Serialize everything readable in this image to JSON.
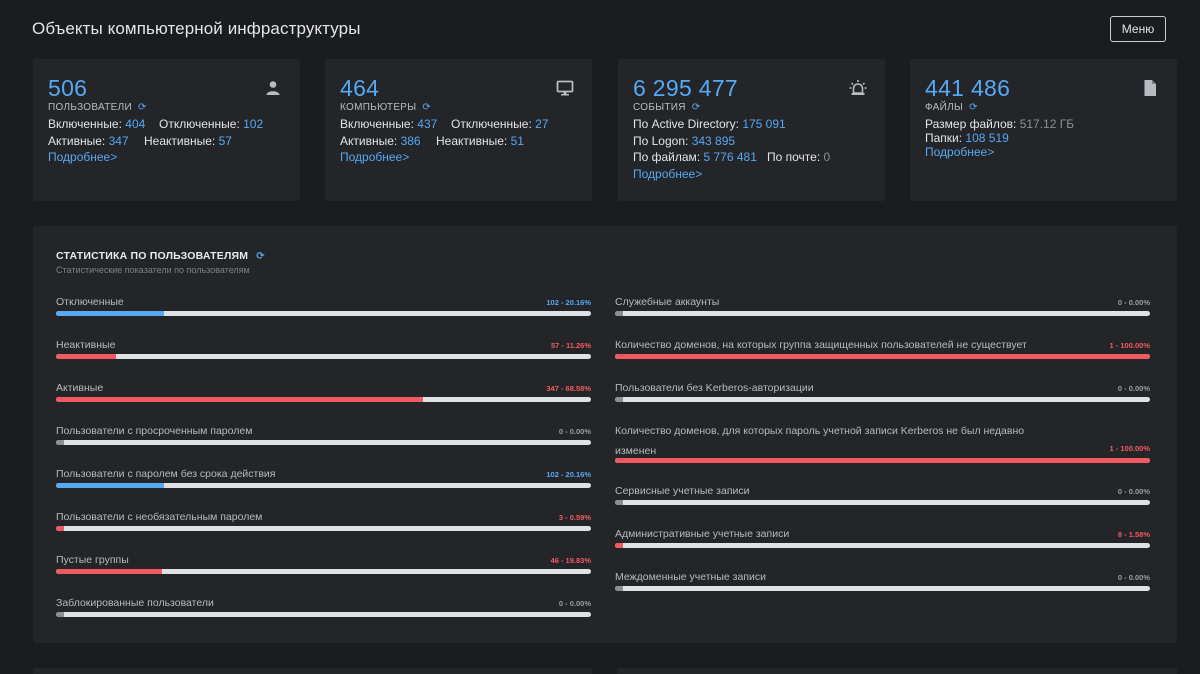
{
  "header": {
    "title": "Объекты компьютерной инфраструктуры",
    "menu_label": "Меню"
  },
  "colors": {
    "blue": "#56a9f2",
    "red": "#f25a61",
    "gray": "#8b8e95",
    "track": "#dfe1e4"
  },
  "cards": [
    {
      "icon": "user-icon",
      "value": "506",
      "caption": "ПОЛЬЗОВАТЕЛИ",
      "rows": [
        [
          {
            "label": "Включенные",
            "value": "404"
          },
          {
            "label": "Отключенные",
            "value": "102"
          }
        ],
        [
          {
            "label": "Активные",
            "value": "347"
          },
          {
            "label": "Неактивные",
            "value": "57"
          }
        ]
      ],
      "more": "Подробнее>"
    },
    {
      "icon": "monitor-icon",
      "value": "464",
      "caption": "КОМПЬЮТЕРЫ",
      "rows": [
        [
          {
            "label": "Включенные",
            "value": "437"
          },
          {
            "label": "Отключенные",
            "value": "27"
          }
        ],
        [
          {
            "label": "Активные",
            "value": "386"
          },
          {
            "label": "Неактивные",
            "value": "51"
          }
        ]
      ],
      "more": "Подробнее>"
    },
    {
      "icon": "siren-icon",
      "value": "6 295 477",
      "caption": "СОБЫТИЯ",
      "rows": [
        [
          {
            "label": "По Active Directory",
            "value": "175 091"
          }
        ],
        [
          {
            "label": "По Logon",
            "value": "343 895"
          }
        ],
        [
          {
            "label": "По файлам",
            "value": "5 776 481"
          },
          {
            "label": "По почте",
            "value": "0",
            "muted": true
          }
        ]
      ],
      "more": "Подробнее>"
    },
    {
      "icon": "file-icon",
      "value": "441 486",
      "caption": "ФАЙЛЫ",
      "rows": [
        [
          {
            "label": "Размер файлов",
            "value": "517.12 ГБ",
            "muted": true
          }
        ],
        [
          {
            "label": "Папки",
            "value": "108 519"
          }
        ]
      ],
      "more": "Подробнее>"
    }
  ],
  "stats": {
    "title": "СТАТИСТИКА ПО ПОЛЬЗОВАТЕЛЯМ",
    "subtitle": "Статистические показатели по пользователям",
    "left": [
      {
        "label": "Отключенные",
        "display": "102 - 20.16%",
        "percent": 20.16,
        "color": "blue"
      },
      {
        "label": "Неактивные",
        "display": "57 - 11.26%",
        "percent": 11.26,
        "color": "red"
      },
      {
        "label": "Активные",
        "display": "347 - 68.58%",
        "percent": 68.58,
        "color": "red"
      },
      {
        "label": "Пользователи с просроченным паролем",
        "display": "0 - 0.00%",
        "percent": 0,
        "color": "gray"
      },
      {
        "label": "Пользователи с паролем без срока действия",
        "display": "102 - 20.16%",
        "percent": 20.16,
        "color": "blue"
      },
      {
        "label": "Пользователи с необязательным паролем",
        "display": "3 - 0.59%",
        "percent": 0.59,
        "color": "red"
      },
      {
        "label": "Пустые группы",
        "display": "46 - 19.83%",
        "percent": 19.83,
        "color": "red"
      },
      {
        "label": "Заблокированные пользователи",
        "display": "0 - 0.00%",
        "percent": 0,
        "color": "gray"
      }
    ],
    "right": [
      {
        "label": "Служебные аккаунты",
        "display": "0 - 0.00%",
        "percent": 0,
        "color": "gray"
      },
      {
        "label": "Количество доменов, на которых группа защищенных пользователей не существует",
        "display": "1 - 100.00%",
        "percent": 100,
        "color": "red"
      },
      {
        "label": "Пользователи без Kerberos-авторизации",
        "display": "0 - 0.00%",
        "percent": 0,
        "color": "gray"
      },
      {
        "label": "Количество доменов, для которых пароль учетной записи Kerberos не был недавно",
        "label2": "изменен",
        "display": "1 - 100.00%",
        "percent": 100,
        "color": "red"
      },
      {
        "label": "Сервисные учетные записи",
        "display": "0 - 0.00%",
        "percent": 0,
        "color": "gray"
      },
      {
        "label": "Административные учетные записи",
        "display": "8 - 1.58%",
        "percent": 1.58,
        "color": "red"
      },
      {
        "label": "Междоменные учетные записи",
        "display": "0 - 0.00%",
        "percent": 0,
        "color": "gray"
      }
    ]
  }
}
